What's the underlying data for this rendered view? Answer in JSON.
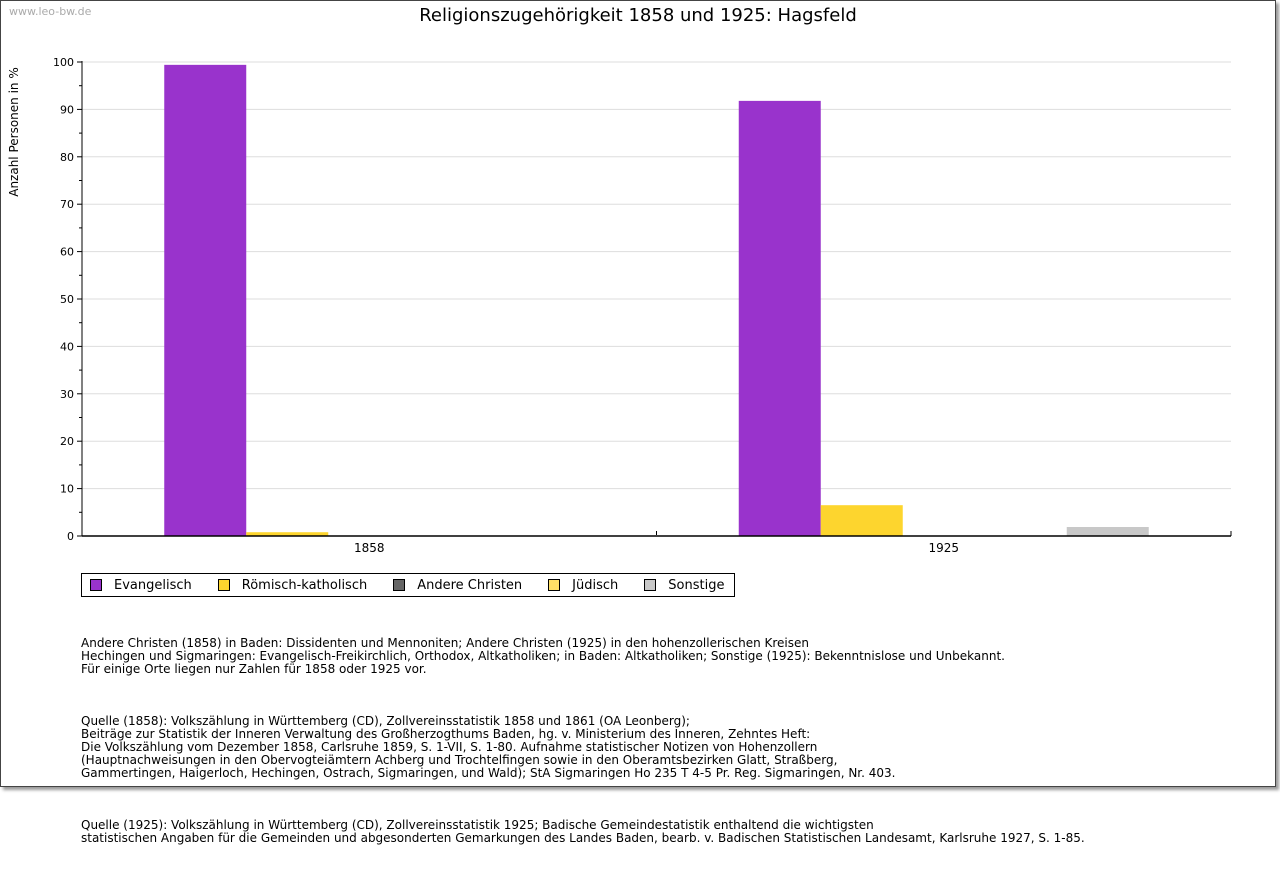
{
  "watermark": "www.leo-bw.de",
  "chart_data": {
    "type": "bar",
    "title": "Religionszugehörigkeit 1858 und 1925: Hagsfeld",
    "xlabel": "",
    "ylabel": "Anzahl Personen in %",
    "ylim": [
      0,
      100
    ],
    "yticks": [
      "0",
      "10",
      "20",
      "30",
      "40",
      "50",
      "60",
      "70",
      "80",
      "90",
      "100"
    ],
    "grid": true,
    "legend_position": "bottom-left",
    "categories": [
      "1858",
      "1925"
    ],
    "series": [
      {
        "name": "Evangelisch",
        "color": "#9933cc",
        "values": [
          99.4,
          91.8
        ]
      },
      {
        "name": "Römisch-katholisch",
        "color": "#fdd52e",
        "values": [
          0.8,
          6.5
        ]
      },
      {
        "name": "Andere Christen",
        "color": "#666666",
        "values": [
          0,
          0
        ]
      },
      {
        "name": "Jüdisch",
        "color": "#ffe066",
        "values": [
          0,
          0
        ]
      },
      {
        "name": "Sonstige",
        "color": "#c8c8c8",
        "values": [
          0,
          1.9
        ]
      }
    ]
  },
  "notes": [
    "Andere Christen (1858) in Baden: Dissidenten und Mennoniten; Andere Christen (1925) in den hohenzollerischen Kreisen\nHechingen und Sigmaringen: Evangelisch-Freikirchlich, Orthodox, Altkatholiken; in Baden: Altkatholiken; Sonstige (1925): Bekenntnislose und Unbekannt.\nFür einige Orte liegen nur Zahlen für 1858 oder 1925 vor.",
    "Quelle (1858): Volkszählung in Württemberg (CD), Zollvereinsstatistik 1858 und 1861 (OA Leonberg);\nBeiträge zur Statistik der Inneren Verwaltung des Großherzogthums Baden, hg. v. Ministerium des Inneren, Zehntes Heft:\nDie Volkszählung vom Dezember 1858, Carlsruhe 1859, S. 1-VII, S. 1-80. Aufnahme statistischer Notizen von Hohenzollern\n(Hauptnachweisungen in den Obervogteiämtern Achberg und Trochtelfingen sowie in den Oberamtsbezirken Glatt, Straßberg,\nGammertingen, Haigerloch, Hechingen, Ostrach, Sigmaringen, und Wald); StA Sigmaringen Ho 235 T 4-5 Pr. Reg. Sigmaringen, Nr. 403.",
    "Quelle (1925): Volkszählung in Württemberg (CD), Zollvereinsstatistik 1925; Badische Gemeindestatistik enthaltend die wichtigsten\nstatistischen Angaben für die Gemeinden und abgesonderten Gemarkungen des Landes Baden, bearb. v. Badischen Statistischen Landesamt, Karlsruhe 1927, S. 1-85."
  ]
}
